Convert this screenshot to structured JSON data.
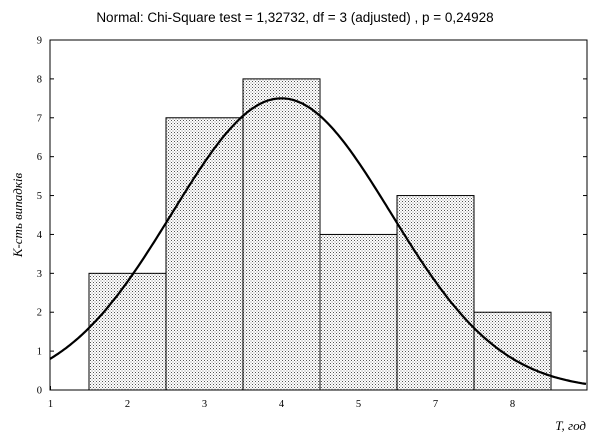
{
  "chart_data": {
    "type": "bar",
    "title": "Normal: Chi-Square test = 1,32732, df = 3 (adjusted) , p = 0,24928",
    "xlabel": "T, год",
    "ylabel": "К-сть випадків",
    "ylim": [
      0,
      9
    ],
    "yticks": [
      "0",
      "1",
      "2",
      "3",
      "4",
      "5",
      "6",
      "7",
      "8",
      "9"
    ],
    "xtick_labels": [
      "1",
      "2",
      "3",
      "4",
      "5",
      "7",
      "8"
    ],
    "bars": [
      {
        "label": "2",
        "value": 3
      },
      {
        "label": "3",
        "value": 7
      },
      {
        "label": "4",
        "value": 8
      },
      {
        "label": "5",
        "value": 4
      },
      {
        "label": "7",
        "value": 5
      },
      {
        "label": "8",
        "value": 2
      }
    ],
    "fitted_curve": {
      "name": "Normal",
      "peak_value": 7.5,
      "peak_at": "4",
      "value_at_left_edge": 0.8,
      "value_at_right_edge": 0.4
    },
    "bar_fill": "#e6e6e6",
    "bar_pattern": "stippled",
    "curve_color": "#000000",
    "grid": false
  }
}
